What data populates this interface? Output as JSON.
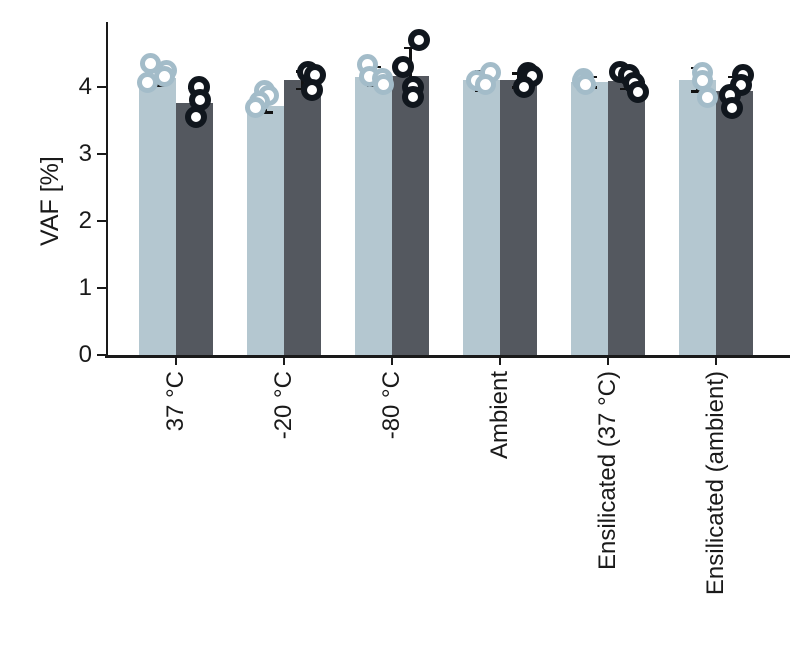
{
  "figure": {
    "background": "#ffffff",
    "axis_color": "#1a1a1a",
    "text_color": "#1a1a1a",
    "error_bar_color": "#121212"
  },
  "chart_data": {
    "type": "bar",
    "title": "",
    "xlabel": "",
    "ylabel": "VAF [%]",
    "ylim": [
      0,
      5
    ],
    "yticks": [
      0,
      1,
      2,
      3,
      4
    ],
    "grid": false,
    "legend": "none",
    "categories": [
      "37 °C",
      "-20 °C",
      "-80 °C",
      "Ambient",
      "Ensilicated (37 °C)",
      "Ensilicated (ambient)"
    ],
    "series": [
      {
        "name": "light",
        "color": "#b4c7d0",
        "point_color": "#a3bcc9",
        "point_size": 21,
        "point_stroke_width": 5,
        "values": [
          4.13,
          3.72,
          4.15,
          4.1,
          4.07,
          4.1
        ],
        "errors": [
          [
            4.02,
            4.26
          ],
          [
            3.62,
            3.84
          ],
          [
            4.02,
            4.3
          ],
          [
            3.95,
            4.23
          ],
          [
            3.99,
            4.15
          ],
          [
            3.93,
            4.28
          ]
        ],
        "points": [
          [
            {
              "v": 4.35,
              "dx": -7
            },
            {
              "v": 4.25,
              "dx": 9
            },
            {
              "v": 4.06,
              "dx": -10
            },
            {
              "v": 4.15,
              "dx": 7
            }
          ],
          [
            {
              "v": 3.95,
              "dx": -1
            },
            {
              "v": 3.88,
              "dx": 3
            },
            {
              "v": 3.78,
              "dx": -6
            },
            {
              "v": 3.7,
              "dx": -10
            }
          ],
          [
            {
              "v": 4.33,
              "dx": -6
            },
            {
              "v": 4.15,
              "dx": -4
            },
            {
              "v": 4.13,
              "dx": 9
            },
            {
              "v": 4.03,
              "dx": 10
            }
          ],
          [
            {
              "v": 4.22,
              "dx": 9
            },
            {
              "v": 4.1,
              "dx": -5
            },
            {
              "v": 4.03,
              "dx": 4
            }
          ],
          [
            {
              "v": 4.13,
              "dx": -6
            },
            {
              "v": 4.09,
              "dx": -7
            },
            {
              "v": 4.04,
              "dx": -4
            }
          ],
          [
            {
              "v": 4.22,
              "dx": 5
            },
            {
              "v": 4.1,
              "dx": 5
            },
            {
              "v": 3.84,
              "dx": 10
            }
          ]
        ]
      },
      {
        "name": "dark",
        "color": "#54585f",
        "point_color": "#10161d",
        "point_size": 22,
        "point_stroke_width": 6,
        "values": [
          3.76,
          4.1,
          4.17,
          4.11,
          4.09,
          3.94
        ],
        "errors": [
          [
            3.56,
            3.99
          ],
          [
            3.97,
            4.23
          ],
          [
            3.82,
            4.58
          ],
          [
            3.99,
            4.2
          ],
          [
            3.97,
            4.2
          ],
          [
            3.72,
            4.15
          ]
        ],
        "points": [
          [
            {
              "v": 4.0,
              "dx": 4
            },
            {
              "v": 3.81,
              "dx": 5
            },
            {
              "v": 3.55,
              "dx": 1
            }
          ],
          [
            {
              "v": 4.22,
              "dx": 5
            },
            {
              "v": 4.18,
              "dx": 12
            },
            {
              "v": 3.96,
              "dx": 9
            }
          ],
          [
            {
              "v": 4.7,
              "dx": 8
            },
            {
              "v": 4.3,
              "dx": -8
            },
            {
              "v": 4.0,
              "dx": 2
            },
            {
              "v": 3.85,
              "dx": 2
            }
          ],
          [
            {
              "v": 4.21,
              "dx": 9
            },
            {
              "v": 4.16,
              "dx": 13
            },
            {
              "v": 4.0,
              "dx": 5
            }
          ],
          [
            {
              "v": 4.22,
              "dx": -7
            },
            {
              "v": 4.18,
              "dx": 2
            },
            {
              "v": 4.06,
              "dx": 7
            },
            {
              "v": 3.93,
              "dx": 11
            }
          ],
          [
            {
              "v": 4.18,
              "dx": 8
            },
            {
              "v": 4.03,
              "dx": 6
            },
            {
              "v": 3.88,
              "dx": -5
            },
            {
              "v": 3.69,
              "dx": -3
            }
          ]
        ]
      }
    ]
  }
}
